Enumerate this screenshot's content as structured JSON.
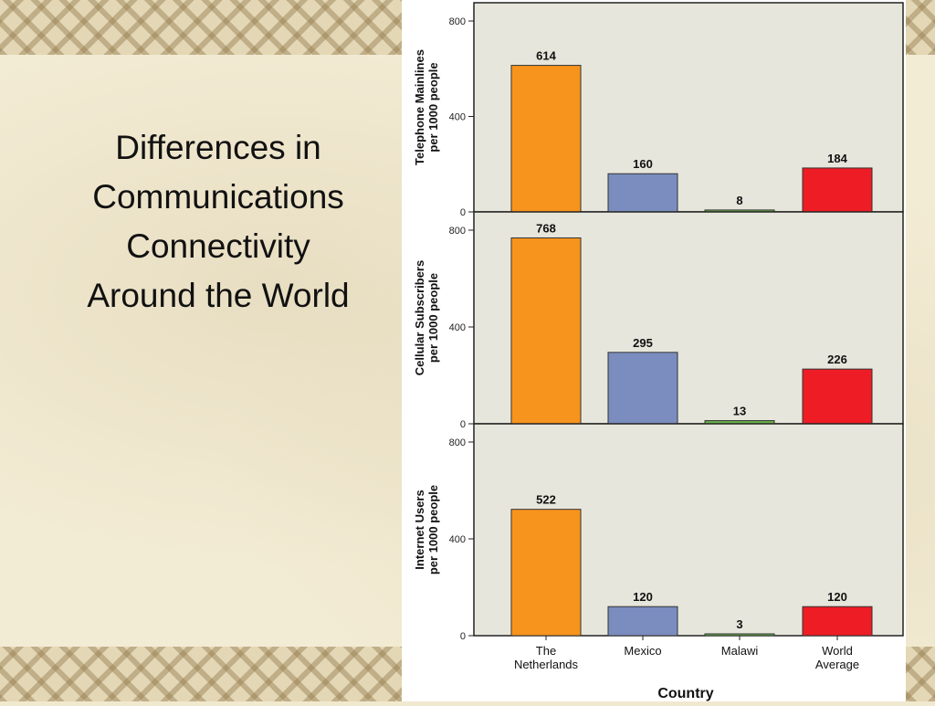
{
  "slide": {
    "title_lines": [
      "Differences in",
      "Communications",
      "Connectivity",
      "Around the World"
    ]
  },
  "chart_data": [
    {
      "type": "bar",
      "ylabel_lines": [
        "Telephone Mainlines",
        "per 1000 people"
      ],
      "categories": [
        "The Netherlands",
        "Mexico",
        "Malawi",
        "World Average"
      ],
      "values": [
        614,
        160,
        8,
        184
      ],
      "ylim": [
        0,
        800
      ],
      "yticks": [
        0,
        400,
        800
      ],
      "grid": false
    },
    {
      "type": "bar",
      "ylabel_lines": [
        "Cellular Subscribers",
        "per 1000 people"
      ],
      "categories": [
        "The Netherlands",
        "Mexico",
        "Malawi",
        "World Average"
      ],
      "values": [
        768,
        295,
        13,
        226
      ],
      "ylim": [
        0,
        800
      ],
      "yticks": [
        0,
        400,
        800
      ],
      "grid": false
    },
    {
      "type": "bar",
      "ylabel_lines": [
        "Internet Users",
        "per 1000 people"
      ],
      "categories": [
        "The Netherlands",
        "Mexico",
        "Malawi",
        "World Average"
      ],
      "values": [
        522,
        120,
        3,
        120
      ],
      "ylim": [
        0,
        800
      ],
      "yticks": [
        0,
        400,
        800
      ],
      "grid": false
    }
  ],
  "x_axis": {
    "label": "Country",
    "tick_lines": [
      [
        "The",
        "Netherlands"
      ],
      [
        "Mexico"
      ],
      [
        "Malawi"
      ],
      [
        "World",
        "Average"
      ]
    ]
  },
  "colors": {
    "panel_bg": "#e6e6dc",
    "bars": [
      "#f7941d",
      "#7b8dbf",
      "#6ab04c",
      "#ee1c25"
    ]
  }
}
